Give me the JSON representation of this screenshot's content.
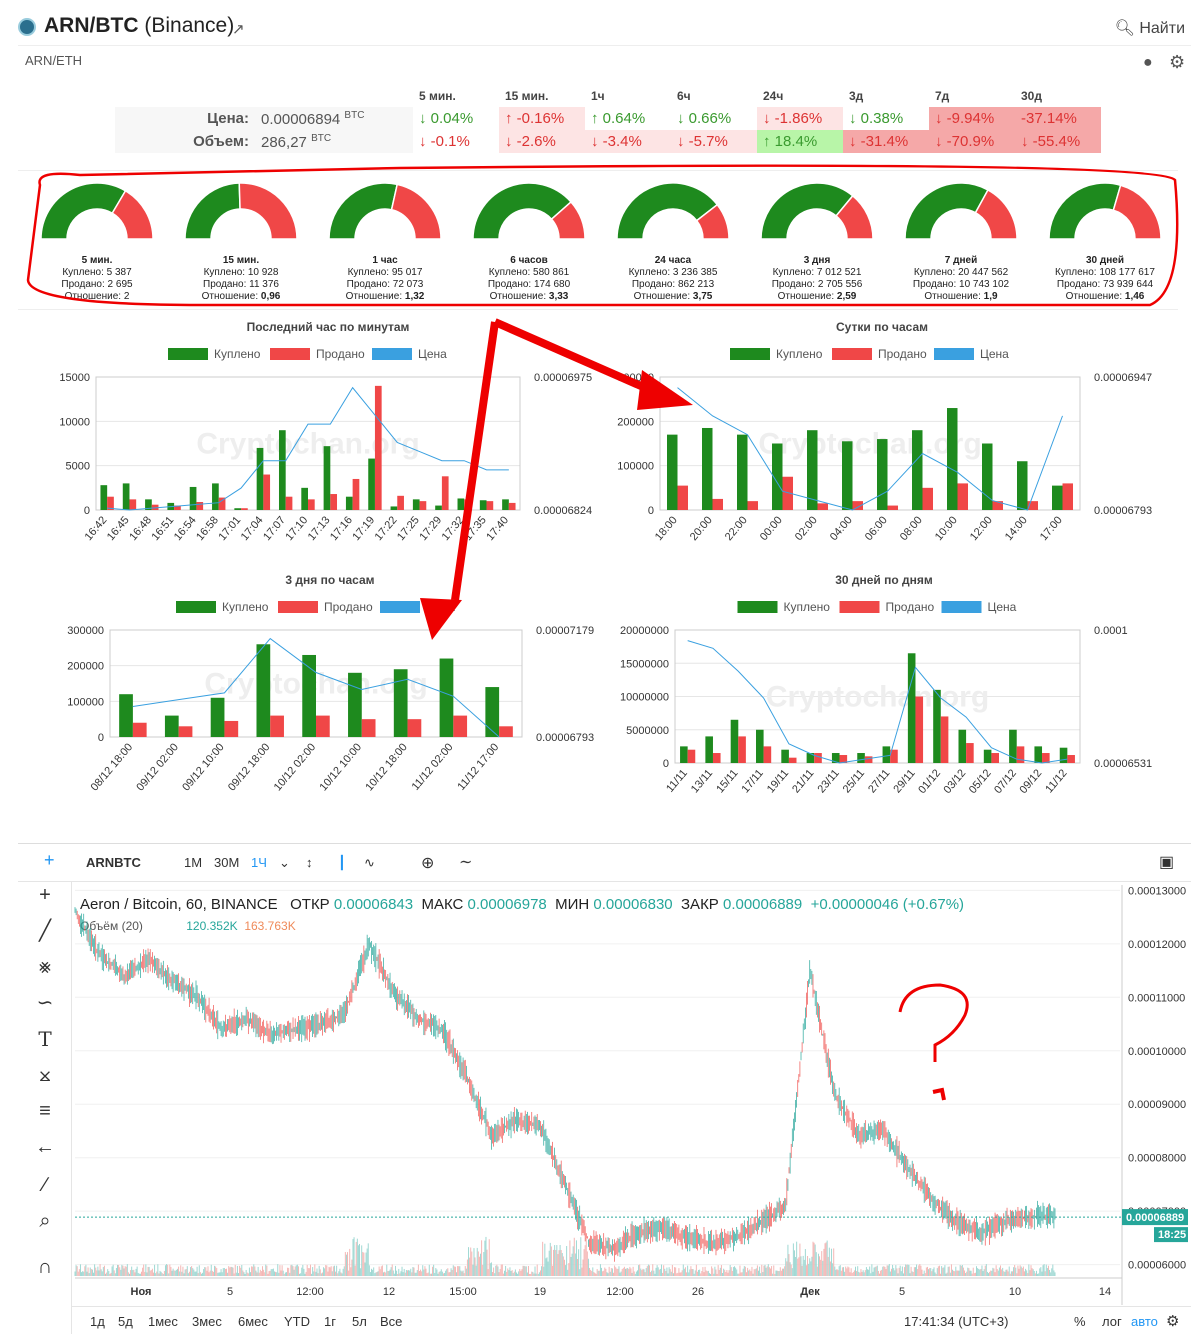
{
  "header": {
    "pair": "ARN/BTC",
    "exchange": "(Binance)",
    "find": "Найти",
    "subpair": "ARN/ETH"
  },
  "stats": {
    "periods": [
      "5 мин.",
      "15 мин.",
      "1ч",
      "6ч",
      "24ч",
      "3д",
      "7д",
      "30д"
    ],
    "price_label": "Цена:",
    "price": "0.00006894",
    "price_unit": "BTC",
    "volume_label": "Объем:",
    "volume": "286,27",
    "volume_unit": "BTC",
    "price_changes": [
      [
        "↓ 0.04%",
        "g",
        ""
      ],
      [
        "↑ -0.16%",
        "r",
        "bg-pr"
      ],
      [
        "↑ 0.64%",
        "g",
        ""
      ],
      [
        "↓ 0.66%",
        "g",
        ""
      ],
      [
        "↓ -1.86%",
        "r",
        "bg-pr"
      ],
      [
        "↓ 0.38%",
        "g",
        ""
      ],
      [
        "↓ -9.94%",
        "r",
        "bg-r"
      ],
      [
        "-37.14%",
        "r",
        "bg-r"
      ]
    ],
    "volume_changes": [
      [
        "↓ -0.1%",
        "r",
        ""
      ],
      [
        "↓ -2.6%",
        "r",
        "bg-pr"
      ],
      [
        "↓ -3.4%",
        "r",
        "bg-pr"
      ],
      [
        "↓ -5.7%",
        "r",
        "bg-pr"
      ],
      [
        "↑ 18.4%",
        "g",
        "bg-g"
      ],
      [
        "↓ -31.4%",
        "r",
        "bg-r"
      ],
      [
        "↓ -70.9%",
        "r",
        "bg-r"
      ],
      [
        "↓ -55.4%",
        "r",
        "bg-r"
      ]
    ]
  },
  "gauges": [
    {
      "title": "5 мин.",
      "bought": "Куплено: 5 387",
      "sold": "Продано: 2 695",
      "ratio": "Отношение: 2",
      "buy_share": 0.67
    },
    {
      "title": "15 мин.",
      "bought": "Куплено: 10 928",
      "sold": "Продано: 11 376",
      "ratio_label": "Отношение:",
      "ratio": "0,96",
      "buy_share": 0.49
    },
    {
      "title": "1 час",
      "bought": "Куплено: 95 017",
      "sold": "Продано: 72 073",
      "ratio_label": "Отношение:",
      "ratio": "1,32",
      "buy_share": 0.57
    },
    {
      "title": "6 часов",
      "bought": "Куплено: 580 861",
      "sold": "Продано: 174 680",
      "ratio_label": "Отношение:",
      "ratio": "3,33",
      "buy_share": 0.77
    },
    {
      "title": "24 часа",
      "bought": "Куплено: 3 236 385",
      "sold": "Продано: 862 213",
      "ratio_label": "Отношение:",
      "ratio": "3,75",
      "buy_share": 0.79
    },
    {
      "title": "3 дня",
      "bought": "Куплено: 7 012 521",
      "sold": "Продано: 2 705 556",
      "ratio_label": "Отношение:",
      "ratio": "2,59",
      "buy_share": 0.72
    },
    {
      "title": "7 дней",
      "bought": "Куплено: 20 447 562",
      "sold": "Продано: 10 743 102",
      "ratio_label": "Отношение:",
      "ratio": "1,9",
      "buy_share": 0.66
    },
    {
      "title": "30 дней",
      "bought": "Куплено: 108 177 617",
      "sold": "Продано: 73 939 644",
      "ratio_label": "Отношение:",
      "ratio": "1,46",
      "buy_share": 0.59
    }
  ],
  "legend": {
    "bought": "Куплено",
    "sold": "Продано",
    "price": "Цена"
  },
  "watermark": "Cryptochan.org",
  "chart_data": [
    {
      "type": "bar",
      "title": "Последний час по минутам",
      "y_ticks": [
        "15000",
        "10000",
        "5000",
        "0"
      ],
      "y2_top": "0.00006975",
      "y2_bottom": "0.00006824",
      "categories": [
        "16:42",
        "16:45",
        "16:48",
        "16:51",
        "16:54",
        "16:58",
        "17:01",
        "17:04",
        "17:07",
        "17:10",
        "17:13",
        "17:16",
        "17:19",
        "17:22",
        "17:25",
        "17:29",
        "17:32",
        "17:35",
        "17:40"
      ],
      "ylim": [
        0,
        15000
      ],
      "series": [
        {
          "name": "Куплено",
          "values": [
            2800,
            3000,
            1200,
            800,
            2600,
            3000,
            200,
            7000,
            9000,
            2500,
            7200,
            1500,
            5800,
            400,
            1200,
            500,
            1300,
            1100,
            1200
          ]
        },
        {
          "name": "Продано",
          "values": [
            1500,
            1200,
            600,
            500,
            900,
            1400,
            200,
            4000,
            1500,
            1200,
            1800,
            3500,
            14000,
            1600,
            1000,
            3800,
            1200,
            1000,
            800
          ]
        },
        {
          "name": "Цена",
          "values": [
            6.828e-05,
            6.826e-05,
            6.828e-05,
            6.83e-05,
            6.832e-05,
            6.834e-05,
            6.85e-05,
            6.88e-05,
            6.88e-05,
            6.92e-05,
            6.92e-05,
            6.96e-05,
            6.93e-05,
            6.9e-05,
            6.89e-05,
            6.88e-05,
            6.88e-05,
            6.87e-05,
            6.87e-05
          ]
        }
      ]
    },
    {
      "type": "bar",
      "title": "Сутки по часам",
      "y_ticks": [
        "300000",
        "200000",
        "100000",
        "0"
      ],
      "y2_top": "0.00006947",
      "y2_bottom": "0.00006793",
      "categories": [
        "18:00",
        "20:00",
        "22:00",
        "00:00",
        "02:00",
        "04:00",
        "06:00",
        "08:00",
        "10:00",
        "12:00",
        "14:00",
        "17:00"
      ],
      "ylim": [
        0,
        300000
      ],
      "series": [
        {
          "name": "Куплено",
          "values": [
            170000,
            185000,
            170000,
            150000,
            180000,
            155000,
            160000,
            180000,
            230000,
            150000,
            110000,
            55000
          ]
        },
        {
          "name": "Продано",
          "values": [
            55000,
            25000,
            20000,
            75000,
            15000,
            20000,
            10000,
            50000,
            60000,
            20000,
            20000,
            60000
          ]
        },
        {
          "name": "Цена",
          "values": [
            6.93e-05,
            6.9e-05,
            6.88e-05,
            6.82e-05,
            6.81e-05,
            6.8e-05,
            6.82e-05,
            6.86e-05,
            6.84e-05,
            6.81e-05,
            6.8e-05,
            6.9e-05
          ]
        }
      ]
    },
    {
      "type": "bar",
      "title": "3 дня по часам",
      "y_ticks": [
        "300000",
        "200000",
        "100000",
        "0"
      ],
      "y2_top": "0.00007179",
      "y2_bottom": "0.00006793",
      "categories": [
        "08/12 18:00",
        "09/12 02:00",
        "09/12 10:00",
        "09/12 18:00",
        "10/12 02:00",
        "10/12 10:00",
        "10/12 18:00",
        "11/12 02:00",
        "11/12 17:00"
      ],
      "ylim": [
        0,
        300000
      ],
      "series": [
        {
          "name": "Куплено",
          "values": [
            120000,
            60000,
            110000,
            260000,
            230000,
            180000,
            190000,
            220000,
            140000
          ]
        },
        {
          "name": "Продано",
          "values": [
            40000,
            30000,
            45000,
            60000,
            60000,
            50000,
            50000,
            60000,
            30000
          ]
        },
        {
          "name": "Цена",
          "values": [
            6.95e-05,
            6.97e-05,
            6.99e-05,
            7.15e-05,
            7.05e-05,
            7e-05,
            7.03e-05,
            6.98e-05,
            6.86e-05
          ]
        }
      ]
    },
    {
      "type": "bar",
      "title": "30 дней по дням",
      "y_ticks": [
        "20000000",
        "15000000",
        "10000000",
        "5000000",
        "0"
      ],
      "y2_top": "0.0001",
      "y2_bottom": "0.00006531",
      "categories": [
        "11/11",
        "13/11",
        "15/11",
        "17/11",
        "19/11",
        "21/11",
        "23/11",
        "25/11",
        "27/11",
        "29/11",
        "01/12",
        "03/12",
        "05/12",
        "07/12",
        "09/12",
        "11/12"
      ],
      "ylim": [
        0,
        20000000
      ],
      "series": [
        {
          "name": "Куплено",
          "values": [
            2500000,
            4000000,
            6500000,
            5000000,
            2000000,
            1500000,
            1500000,
            1500000,
            2500000,
            16500000,
            11000000,
            5000000,
            2000000,
            5000000,
            2500000,
            2300000
          ]
        },
        {
          "name": "Продано",
          "values": [
            2000000,
            1500000,
            4000000,
            2500000,
            800000,
            1500000,
            1200000,
            1000000,
            2000000,
            10000000,
            7000000,
            3000000,
            1500000,
            2500000,
            1500000,
            1200000
          ]
        },
        {
          "name": "Цена",
          "values": [
            0.0001,
            9.8e-05,
            9.2e-05,
            8.5e-05,
            7.3e-05,
            7e-05,
            6.8e-05,
            6.9e-05,
            7e-05,
            9.3e-05,
            8.5e-05,
            8e-05,
            7.2e-05,
            6.9e-05,
            6.8e-05,
            6.9e-05
          ]
        }
      ]
    },
    {
      "type": "line",
      "title": "Aeron / Bitcoin, 60, BINANCE",
      "y_ticks": [
        "0.00013000",
        "0.00012000",
        "0.00011000",
        "0.00010000",
        "0.00009000",
        "0.00008000",
        "0.00007000",
        "0.00006000"
      ],
      "x_ticks": [
        "Ноя",
        "5",
        "12:00",
        "12",
        "15:00",
        "19",
        "12:00",
        "26",
        "Дек",
        "5",
        "10",
        "14"
      ],
      "ylim": [
        5.75e-05,
        0.000131
      ],
      "series": [
        {
          "name": "ARNBTC",
          "values": [
            0.000126,
            0.000118,
            0.000114,
            0.000117,
            0.000113,
            0.00011,
            0.000104,
            0.000106,
            0.000103,
            0.000104,
            0.000105,
            0.000107,
            0.00012,
            0.000111,
            0.000106,
            0.000104,
            9.5e-05,
            8.4e-05,
            8.7e-05,
            8.6e-05,
            7.5e-05,
            6.4e-05,
            6.3e-05,
            6.6e-05,
            6.7e-05,
            6.5e-05,
            6.4e-05,
            6.5e-05,
            6.8e-05,
            7.1e-05,
            0.000115,
            9.2e-05,
            8.4e-05,
            8.5e-05,
            7.8e-05,
            7.2e-05,
            6.8e-05,
            6.6e-05,
            6.8e-05,
            6.9e-05,
            6.9e-05
          ]
        }
      ]
    }
  ],
  "tv": {
    "symbol": "ARNBTC",
    "intervals": [
      "1М",
      "30М",
      "1Ч"
    ],
    "legend_title": "Aeron / Bitcoin, 60, BINANCE",
    "open_l": "ОТКР",
    "open": "0.00006843",
    "high_l": "МАКС",
    "high": "0.00006978",
    "low_l": "МИН",
    "low": "0.00006830",
    "close_l": "ЗАКР",
    "close": "0.00006889",
    "change": "+0.00000046 (+0.67%)",
    "vol_label": "Объём (20)",
    "vol_a": "120.352K",
    "vol_b": "163.763K",
    "last_price": "0.00006889",
    "last_time": "18:25",
    "ranges": [
      "1д",
      "5д",
      "1мес",
      "3мес",
      "6мес",
      "YTD",
      "1г",
      "5л",
      "Все"
    ],
    "clock": "17:41:34 (UTC+3)",
    "pct": "%",
    "log": "лог",
    "auto": "авто"
  }
}
